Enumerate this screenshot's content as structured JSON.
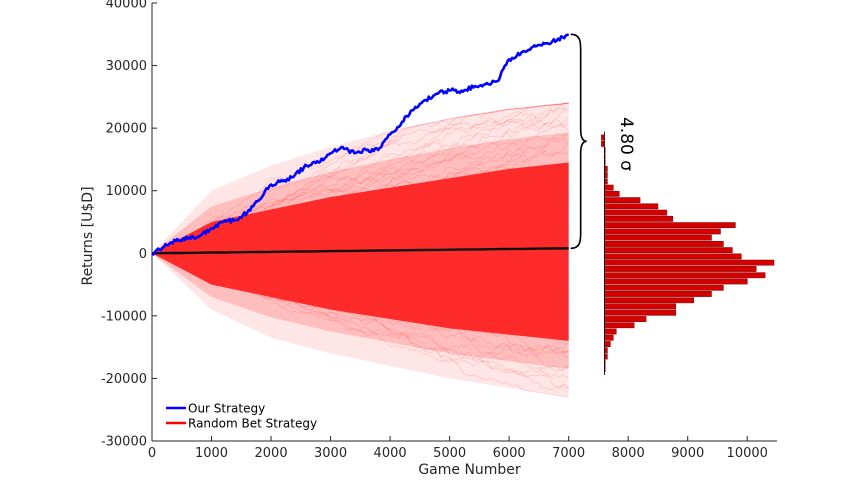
{
  "chart_data": {
    "type": "line",
    "xlabel": "Game Number",
    "ylabel": "Returns [U$D]",
    "xlim": [
      0,
      10500
    ],
    "ylim": [
      -30000,
      40000
    ],
    "x_ticks": [
      "0",
      "1000",
      "2000",
      "3000",
      "4000",
      "5000",
      "6000",
      "7000",
      "8000",
      "9000",
      "10000"
    ],
    "y_ticks": [
      "-30000",
      "-20000",
      "-10000",
      "0",
      "10000",
      "20000",
      "30000",
      "40000"
    ],
    "legend": {
      "placement": "bottom-left"
    },
    "series": [
      {
        "name": "Our Strategy",
        "color": "#0000ff",
        "x": [
          0,
          200,
          400,
          600,
          800,
          1000,
          1200,
          1400,
          1600,
          1800,
          2000,
          2200,
          2400,
          2600,
          2800,
          3000,
          3200,
          3400,
          3600,
          3800,
          4000,
          4200,
          4400,
          4600,
          4800,
          5000,
          5200,
          5400,
          5600,
          5800,
          6000,
          6200,
          6400,
          6600,
          6800,
          7000
        ],
        "values": [
          0,
          1000,
          2000,
          2300,
          2800,
          4000,
          5000,
          5300,
          6500,
          8500,
          11000,
          11500,
          12500,
          14000,
          14500,
          16000,
          17000,
          16000,
          16500,
          16500,
          19000,
          21000,
          23000,
          24500,
          25500,
          26000,
          26000,
          26500,
          27000,
          27500,
          31000,
          32000,
          33000,
          33500,
          34000,
          35000
        ]
      },
      {
        "name": "Random Bet Strategy",
        "color": "#ff2020",
        "x": [
          0,
          7000
        ],
        "values": [
          0,
          800
        ],
        "band": {
          "x": [
            0,
            1000,
            2000,
            3000,
            4000,
            5000,
            6000,
            7000
          ],
          "core_upper": [
            0,
            5000,
            7000,
            9000,
            10500,
            12000,
            13500,
            14500
          ],
          "core_lower": [
            0,
            -5000,
            -7000,
            -9000,
            -10500,
            -12000,
            -13000,
            -14000
          ],
          "max_upper": [
            0,
            10000,
            14000,
            17000,
            19500,
            21500,
            23000,
            24000
          ],
          "min_lower": [
            0,
            -9000,
            -13500,
            -16000,
            -18000,
            -20000,
            -21500,
            -23000
          ]
        }
      }
    ],
    "histogram": {
      "orientation": "horizontal",
      "color": "#d40000",
      "bin_edges": [
        -19000,
        -18000,
        -17000,
        -16000,
        -15000,
        -14000,
        -13000,
        -12000,
        -11000,
        -10000,
        -9000,
        -8000,
        -7000,
        -6000,
        -5000,
        -4000,
        -3000,
        -2000,
        -1000,
        0,
        1000,
        2000,
        3000,
        4000,
        5000,
        6000,
        7000,
        8000,
        9000,
        10000,
        11000,
        12000,
        13000,
        14000,
        15000,
        16000,
        17000,
        18000,
        19000
      ],
      "counts": [
        7600,
        7600,
        7650,
        7650,
        7700,
        7750,
        7800,
        8100,
        8300,
        8800,
        8800,
        9100,
        9400,
        9600,
        10000,
        10300,
        10150,
        10450,
        9900,
        9750,
        9600,
        9400,
        9550,
        9800,
        8750,
        8650,
        8500,
        8200,
        7850,
        7750,
        7650,
        7650,
        7650,
        7600,
        7600,
        7600,
        7550,
        7550
      ]
    },
    "annotations": [
      {
        "text": "4.80 σ",
        "x": 7300,
        "y_range": [
          800,
          35000
        ]
      }
    ]
  }
}
